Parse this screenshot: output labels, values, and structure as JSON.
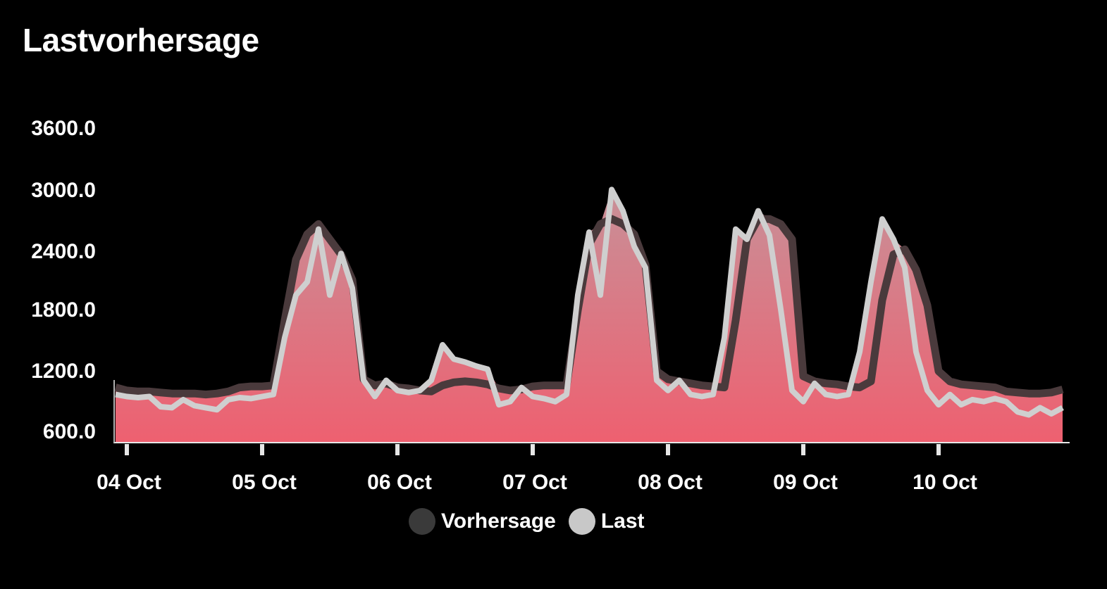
{
  "header": {
    "title": "Lastvorhersage"
  },
  "legend": {
    "items": [
      {
        "label": "Vorhersage",
        "color": "#3a3a3a"
      },
      {
        "label": "Last",
        "color": "#c8c8c8"
      }
    ]
  },
  "colors": {
    "background": "#000000",
    "area_top": "#c89098",
    "area_bottom": "#ee6070",
    "forecast_line": "#4a3a3c",
    "load_line": "#cfcfcf",
    "axis": "#e6e6e6"
  },
  "chart_data": {
    "type": "area",
    "title": "Lastvorhersage",
    "xlabel": "",
    "ylabel": "",
    "yticks": [
      600.0,
      1200.0,
      1800.0,
      2400.0,
      3000.0,
      3600.0
    ],
    "ytick_labels": [
      "600.0",
      "1200.0",
      "1800.0",
      "2400.0",
      "3000.0",
      "3600.0"
    ],
    "ylim": [
      500,
      3700
    ],
    "xtick_labels": [
      "04 Oct",
      "05 Oct",
      "06 Oct",
      "07 Oct",
      "08 Oct",
      "09 Oct",
      "10 Oct"
    ],
    "x_unit": "hours since 04 Oct 00:00",
    "x_range": [
      -2.4,
      167.4
    ],
    "grid": false,
    "legend_position": "bottom-center",
    "x": [
      -2,
      0,
      2,
      4,
      6,
      8,
      10,
      12,
      14,
      16,
      18,
      20,
      22,
      24,
      26,
      28,
      30,
      32,
      34,
      36,
      38,
      40,
      42,
      44,
      46,
      48,
      50,
      52,
      54,
      56,
      58,
      60,
      62,
      64,
      66,
      68,
      70,
      72,
      74,
      76,
      78,
      80,
      82,
      84,
      86,
      88,
      90,
      92,
      94,
      96,
      98,
      100,
      102,
      104,
      106,
      108,
      110,
      112,
      114,
      116,
      118,
      120,
      122,
      124,
      126,
      128,
      130,
      132,
      134,
      136,
      138,
      140,
      142,
      144,
      146,
      148,
      150,
      152,
      154,
      156,
      158,
      160,
      162,
      164,
      166
    ],
    "series": [
      {
        "name": "Vorhersage",
        "values": [
          1040,
          1010,
          1000,
          1000,
          990,
          980,
          980,
          980,
          970,
          980,
          1000,
          1040,
          1050,
          1050,
          1060,
          1700,
          2300,
          2550,
          2650,
          2500,
          2350,
          2100,
          1120,
          1060,
          1080,
          1040,
          1030,
          1010,
          1000,
          1060,
          1090,
          1100,
          1090,
          1070,
          1030,
          1010,
          1020,
          1050,
          1060,
          1060,
          1060,
          1800,
          2450,
          2650,
          2700,
          2650,
          2550,
          2250,
          1200,
          1120,
          1100,
          1080,
          1060,
          1050,
          1040,
          1700,
          2500,
          2700,
          2700,
          2650,
          2500,
          1150,
          1100,
          1080,
          1070,
          1050,
          1040,
          1100,
          1900,
          2350,
          2400,
          2200,
          1850,
          1200,
          1100,
          1070,
          1060,
          1050,
          1040,
          1000,
          990,
          980,
          980,
          990,
          1020
        ]
      },
      {
        "name": "Last",
        "values": [
          970,
          950,
          940,
          950,
          850,
          840,
          920,
          860,
          840,
          820,
          920,
          940,
          930,
          950,
          970,
          1530,
          1950,
          2080,
          2600,
          1950,
          2360,
          2020,
          1110,
          950,
          1110,
          1010,
          990,
          1010,
          1110,
          1460,
          1320,
          1290,
          1250,
          1220,
          870,
          900,
          1040,
          950,
          930,
          900,
          970,
          1950,
          2570,
          1950,
          2990,
          2780,
          2430,
          2220,
          1110,
          1010,
          1110,
          970,
          950,
          970,
          1530,
          2600,
          2500,
          2780,
          2540,
          1810,
          1010,
          900,
          1080,
          970,
          950,
          970,
          1390,
          2080,
          2700,
          2500,
          2220,
          1390,
          1010,
          870,
          970,
          870,
          920,
          900,
          930,
          900,
          800,
          770,
          840,
          780,
          840
        ]
      }
    ]
  }
}
